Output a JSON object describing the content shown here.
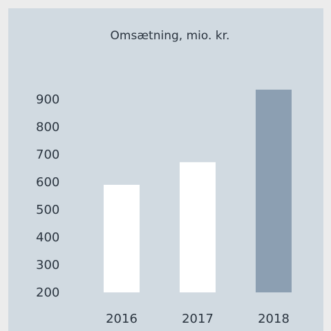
{
  "chart_data": {
    "type": "bar",
    "title": "Omsætning, mio. kr.",
    "categories": [
      "2016",
      "2017",
      "2018"
    ],
    "values": [
      590,
      672,
      935
    ],
    "colors": [
      "#ffffff",
      "#ffffff",
      "#8c9fb2"
    ],
    "ylim": [
      200,
      950
    ],
    "yticks": [
      200,
      300,
      400,
      500,
      600,
      700,
      800,
      900
    ],
    "grid": false
  }
}
